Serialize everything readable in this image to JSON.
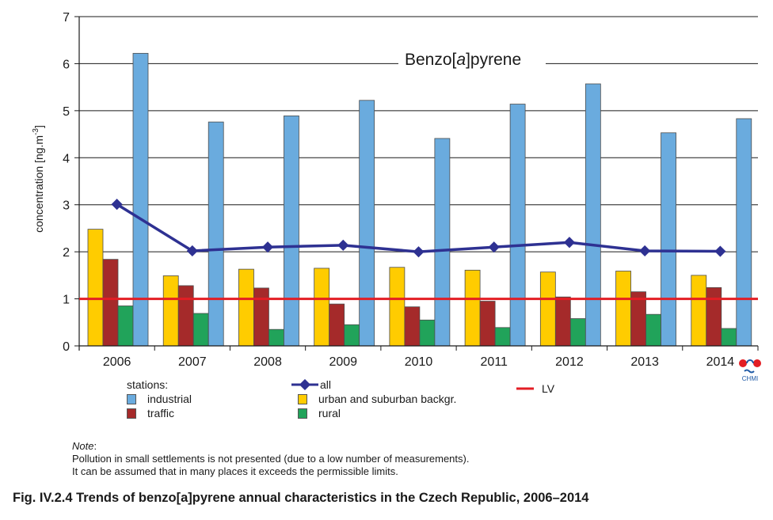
{
  "chart_data": {
    "type": "bar",
    "title_prefix": "Benzo[",
    "title_italic": "a",
    "title_suffix": "]pyrene",
    "ylabel_main": "concentration [ng.m",
    "ylabel_sup": "-3",
    "ylabel_end": "]",
    "ylim": [
      0,
      7
    ],
    "yticks": [
      "0",
      "1",
      "2",
      "3",
      "4",
      "5",
      "6",
      "7"
    ],
    "grid": true,
    "categories": [
      "2006",
      "2007",
      "2008",
      "2009",
      "2010",
      "2011",
      "2012",
      "2013",
      "2014"
    ],
    "series": [
      {
        "name": "urban and suburban backgr.",
        "color": "#ffcc00",
        "values": [
          2.48,
          1.49,
          1.63,
          1.65,
          1.67,
          1.61,
          1.57,
          1.59,
          1.5
        ]
      },
      {
        "name": "traffic",
        "color": "#a52a2a",
        "values": [
          1.84,
          1.28,
          1.23,
          0.89,
          0.83,
          0.95,
          1.04,
          1.15,
          1.24
        ]
      },
      {
        "name": "rural",
        "color": "#21a35a",
        "values": [
          0.85,
          0.69,
          0.35,
          0.45,
          0.55,
          0.39,
          0.58,
          0.67,
          0.37
        ]
      },
      {
        "name": "industrial",
        "color": "#6aabde",
        "values": [
          6.22,
          4.76,
          4.89,
          5.22,
          4.41,
          5.14,
          5.57,
          4.53,
          4.83
        ]
      }
    ],
    "line_series": {
      "name": "all",
      "color": "#2e3192",
      "values": [
        3.01,
        2.02,
        2.1,
        2.14,
        2.0,
        2.1,
        2.2,
        2.02,
        2.01
      ]
    },
    "limit_line": {
      "name": "LV",
      "value": 1,
      "color": "#e31e24"
    }
  },
  "legend": {
    "stations_label": "stations:",
    "industrial": "industrial",
    "traffic": "traffic",
    "all": "all",
    "urban": "urban and suburban backgr.",
    "rural": "rural",
    "lv": "LV"
  },
  "note": {
    "heading": "Note",
    "line1": "Pollution in small settlements is not presented (due to a low number of measurements).",
    "line2": "It can be assumed that in many places it exceeds the permissible limits."
  },
  "caption": "Fig. IV.2.4  Trends of benzo[a]pyrene annual characteristics in the Czech Republic, 2006–2014",
  "logo": {
    "text": "CHMI",
    "icon": "chmi-logo-icon"
  }
}
